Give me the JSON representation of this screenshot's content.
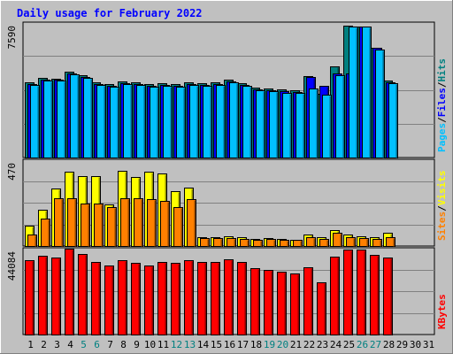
{
  "chart_data": {
    "type": "bar",
    "title": "Daily usage for February 2022",
    "days": [
      "1",
      "2",
      "3",
      "4",
      "5",
      "6",
      "7",
      "8",
      "9",
      "10",
      "11",
      "12",
      "13",
      "14",
      "15",
      "16",
      "17",
      "18",
      "19",
      "20",
      "21",
      "22",
      "23",
      "24",
      "25",
      "26",
      "27",
      "28",
      "29",
      "30",
      "31"
    ],
    "weekend_days": [
      "5",
      "6",
      "12",
      "13",
      "19",
      "20",
      "26",
      "27"
    ],
    "panels": [
      {
        "id": "hits",
        "max_label": "7590",
        "ymax": 7590,
        "legend": [
          "Pages",
          "/",
          "Files",
          "/",
          "Hits"
        ],
        "series": [
          {
            "name": "Hits",
            "color": "#008080",
            "values": [
              4250,
              4500,
              4450,
              4900,
              4650,
              4250,
              4150,
              4300,
              4250,
              4150,
              4200,
              4150,
              4250,
              4200,
              4250,
              4400,
              4200,
              3950,
              3900,
              3850,
              3800,
              4600,
              3600,
              5200,
              7500,
              7450,
              6250,
              4350,
              0,
              0,
              0
            ]
          },
          {
            "name": "Files",
            "color": "#0000FF",
            "values": [
              4150,
              4400,
              4400,
              4800,
              4550,
              4150,
              4050,
              4200,
              4150,
              4050,
              4100,
              4050,
              4150,
              4100,
              4150,
              4300,
              4100,
              3850,
              3800,
              3750,
              3700,
              4550,
              4050,
              4800,
              4800,
              7450,
              6250,
              4250,
              0,
              0,
              0
            ]
          },
          {
            "name": "Pages",
            "color": "#00C0FF",
            "values": [
              4100,
              4350,
              4350,
              4750,
              4500,
              4100,
              4000,
              4150,
              4100,
              4000,
              4050,
              4000,
              4100,
              4050,
              4100,
              4250,
              4050,
              3800,
              3750,
              3650,
              3650,
              3900,
              3550,
              4650,
              7450,
              7450,
              6150,
              4200,
              0,
              0,
              0
            ]
          }
        ]
      },
      {
        "id": "visits",
        "max_label": "470",
        "ymax": 470,
        "legend": [
          "Sites",
          "/",
          "Visits"
        ],
        "series": [
          {
            "name": "Visits",
            "color": "#FFFF00",
            "values": [
              115,
              200,
              320,
              410,
              385,
              385,
              230,
              415,
              380,
              410,
              400,
              305,
              325,
              50,
              50,
              55,
              50,
              40,
              45,
              40,
              35,
              65,
              50,
              90,
              65,
              55,
              50,
              75,
              0,
              0,
              0
            ]
          },
          {
            "name": "Sites",
            "color": "#FF8000",
            "values": [
              65,
              150,
              265,
              265,
              235,
              235,
              215,
              265,
              265,
              260,
              250,
              215,
              260,
              45,
              45,
              45,
              40,
              35,
              40,
              35,
              35,
              50,
              40,
              75,
              50,
              45,
              40,
              50,
              0,
              0,
              0
            ]
          }
        ]
      },
      {
        "id": "kbytes",
        "max_label": "44084",
        "ymax": 44084,
        "legend": [
          "KBytes"
        ],
        "series": [
          {
            "name": "KBytes",
            "color": "#FF0000",
            "values": [
              38500,
              41000,
              40000,
              44500,
              41700,
              37500,
              36000,
              38500,
              37000,
              35800,
              37500,
              37000,
              38500,
              37500,
              37500,
              39000,
              37500,
              34500,
              33500,
              32500,
              31500,
              35000,
              27000,
              40500,
              44000,
              44000,
              41500,
              40000,
              0,
              0,
              0
            ]
          }
        ]
      }
    ]
  },
  "colors": {
    "background": "#C0C0C0",
    "title": "#0000FF",
    "axis_label_weekday": "#000000",
    "axis_label_weekend": "#008080",
    "gridline": "#808080"
  }
}
